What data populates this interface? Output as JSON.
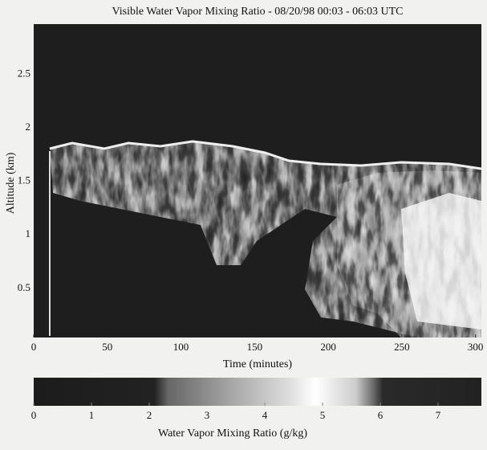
{
  "chart_data": {
    "type": "heatmap",
    "title": "Visible Water Vapor Mixing Ratio - 08/20/98 00:03 - 06:03 UTC",
    "x_label": "Time (minutes)",
    "y_label": "Altitude (km)",
    "xlim": [
      0,
      304
    ],
    "xticks": [
      0,
      50,
      100,
      150,
      200,
      250,
      300
    ],
    "ylim": [
      0.04,
      2.97
    ],
    "yticks": [
      0.5,
      1,
      1.5,
      2,
      2.5
    ],
    "colorbar": {
      "label": "Water Vapor Mixing Ratio (g/kg)",
      "lim": [
        0,
        7.75
      ],
      "ticks": [
        0,
        1,
        2,
        3,
        4,
        5,
        6,
        7
      ]
    }
  }
}
